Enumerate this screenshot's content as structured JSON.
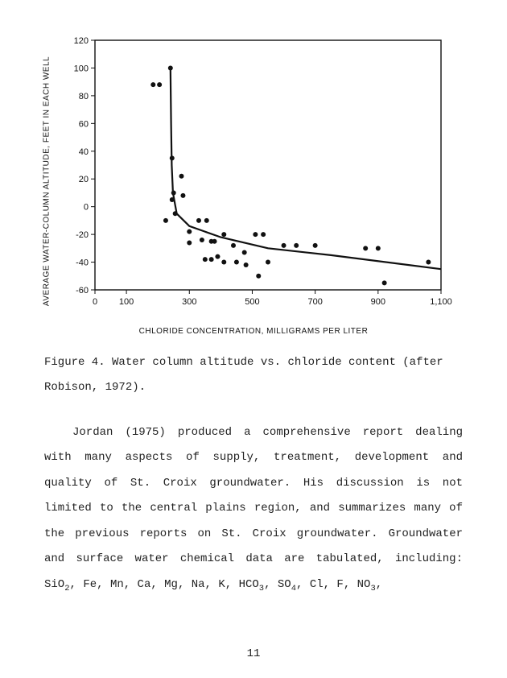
{
  "chart": {
    "type": "scatter+line",
    "ylabel": "AVERAGE WATER-COLUMN ALTITUDE, FEET IN EACH WELL",
    "xlabel": "CHLORIDE CONCENTRATION, MILLIGRAMS PER LITER",
    "xlim": [
      0,
      1100
    ],
    "ylim": [
      -60,
      120
    ],
    "xticks": [
      0,
      100,
      300,
      500,
      700,
      900,
      1100
    ],
    "yticks": [
      -60,
      -40,
      -20,
      0,
      20,
      40,
      60,
      80,
      100,
      120
    ],
    "border_color": "#111111",
    "tick_color": "#111111",
    "point_color": "#111111",
    "line_color": "#111111",
    "line_width": 2.2,
    "point_radius": 3,
    "tick_fontsize": 11,
    "label_fontsize": 10,
    "background_color": "#ffffff",
    "points": [
      [
        185,
        88
      ],
      [
        205,
        88
      ],
      [
        240,
        100
      ],
      [
        245,
        35
      ],
      [
        250,
        10
      ],
      [
        245,
        5
      ],
      [
        255,
        -5
      ],
      [
        225,
        -10
      ],
      [
        275,
        22
      ],
      [
        280,
        8
      ],
      [
        300,
        -18
      ],
      [
        300,
        -26
      ],
      [
        330,
        -10
      ],
      [
        355,
        -10
      ],
      [
        340,
        -24
      ],
      [
        370,
        -25
      ],
      [
        380,
        -25
      ],
      [
        410,
        -20
      ],
      [
        350,
        -38
      ],
      [
        370,
        -38
      ],
      [
        390,
        -36
      ],
      [
        410,
        -40
      ],
      [
        440,
        -28
      ],
      [
        450,
        -40
      ],
      [
        475,
        -33
      ],
      [
        480,
        -42
      ],
      [
        510,
        -20
      ],
      [
        535,
        -20
      ],
      [
        520,
        -50
      ],
      [
        550,
        -40
      ],
      [
        600,
        -28
      ],
      [
        640,
        -28
      ],
      [
        700,
        -28
      ],
      [
        860,
        -30
      ],
      [
        900,
        -30
      ],
      [
        920,
        -55
      ],
      [
        1060,
        -40
      ]
    ],
    "curve": [
      [
        240,
        100
      ],
      [
        242,
        60
      ],
      [
        244,
        30
      ],
      [
        248,
        10
      ],
      [
        260,
        -5
      ],
      [
        300,
        -14
      ],
      [
        400,
        -22
      ],
      [
        550,
        -30
      ],
      [
        750,
        -35
      ],
      [
        1100,
        -45
      ]
    ]
  },
  "caption": "Figure 4.  Water column altitude vs. chloride content (after Robison, 1972).",
  "paragraph_html": "Jordan (1975) produced a comprehensive report dealing with many aspects of supply, treatment, development and quality of St. Croix groundwater.  His discussion is not limited to the central plains region, and summarizes many of the previous reports on St. Croix groundwater.  Groundwater and surface water chemical data are tabulated, including: SiO<sub>2</sub>, Fe, Mn, Ca, Mg, Na, K, HCO<sub>3</sub>, SO<sub>4</sub>, Cl, F, NO<sub>3</sub>,",
  "page_number": "11"
}
